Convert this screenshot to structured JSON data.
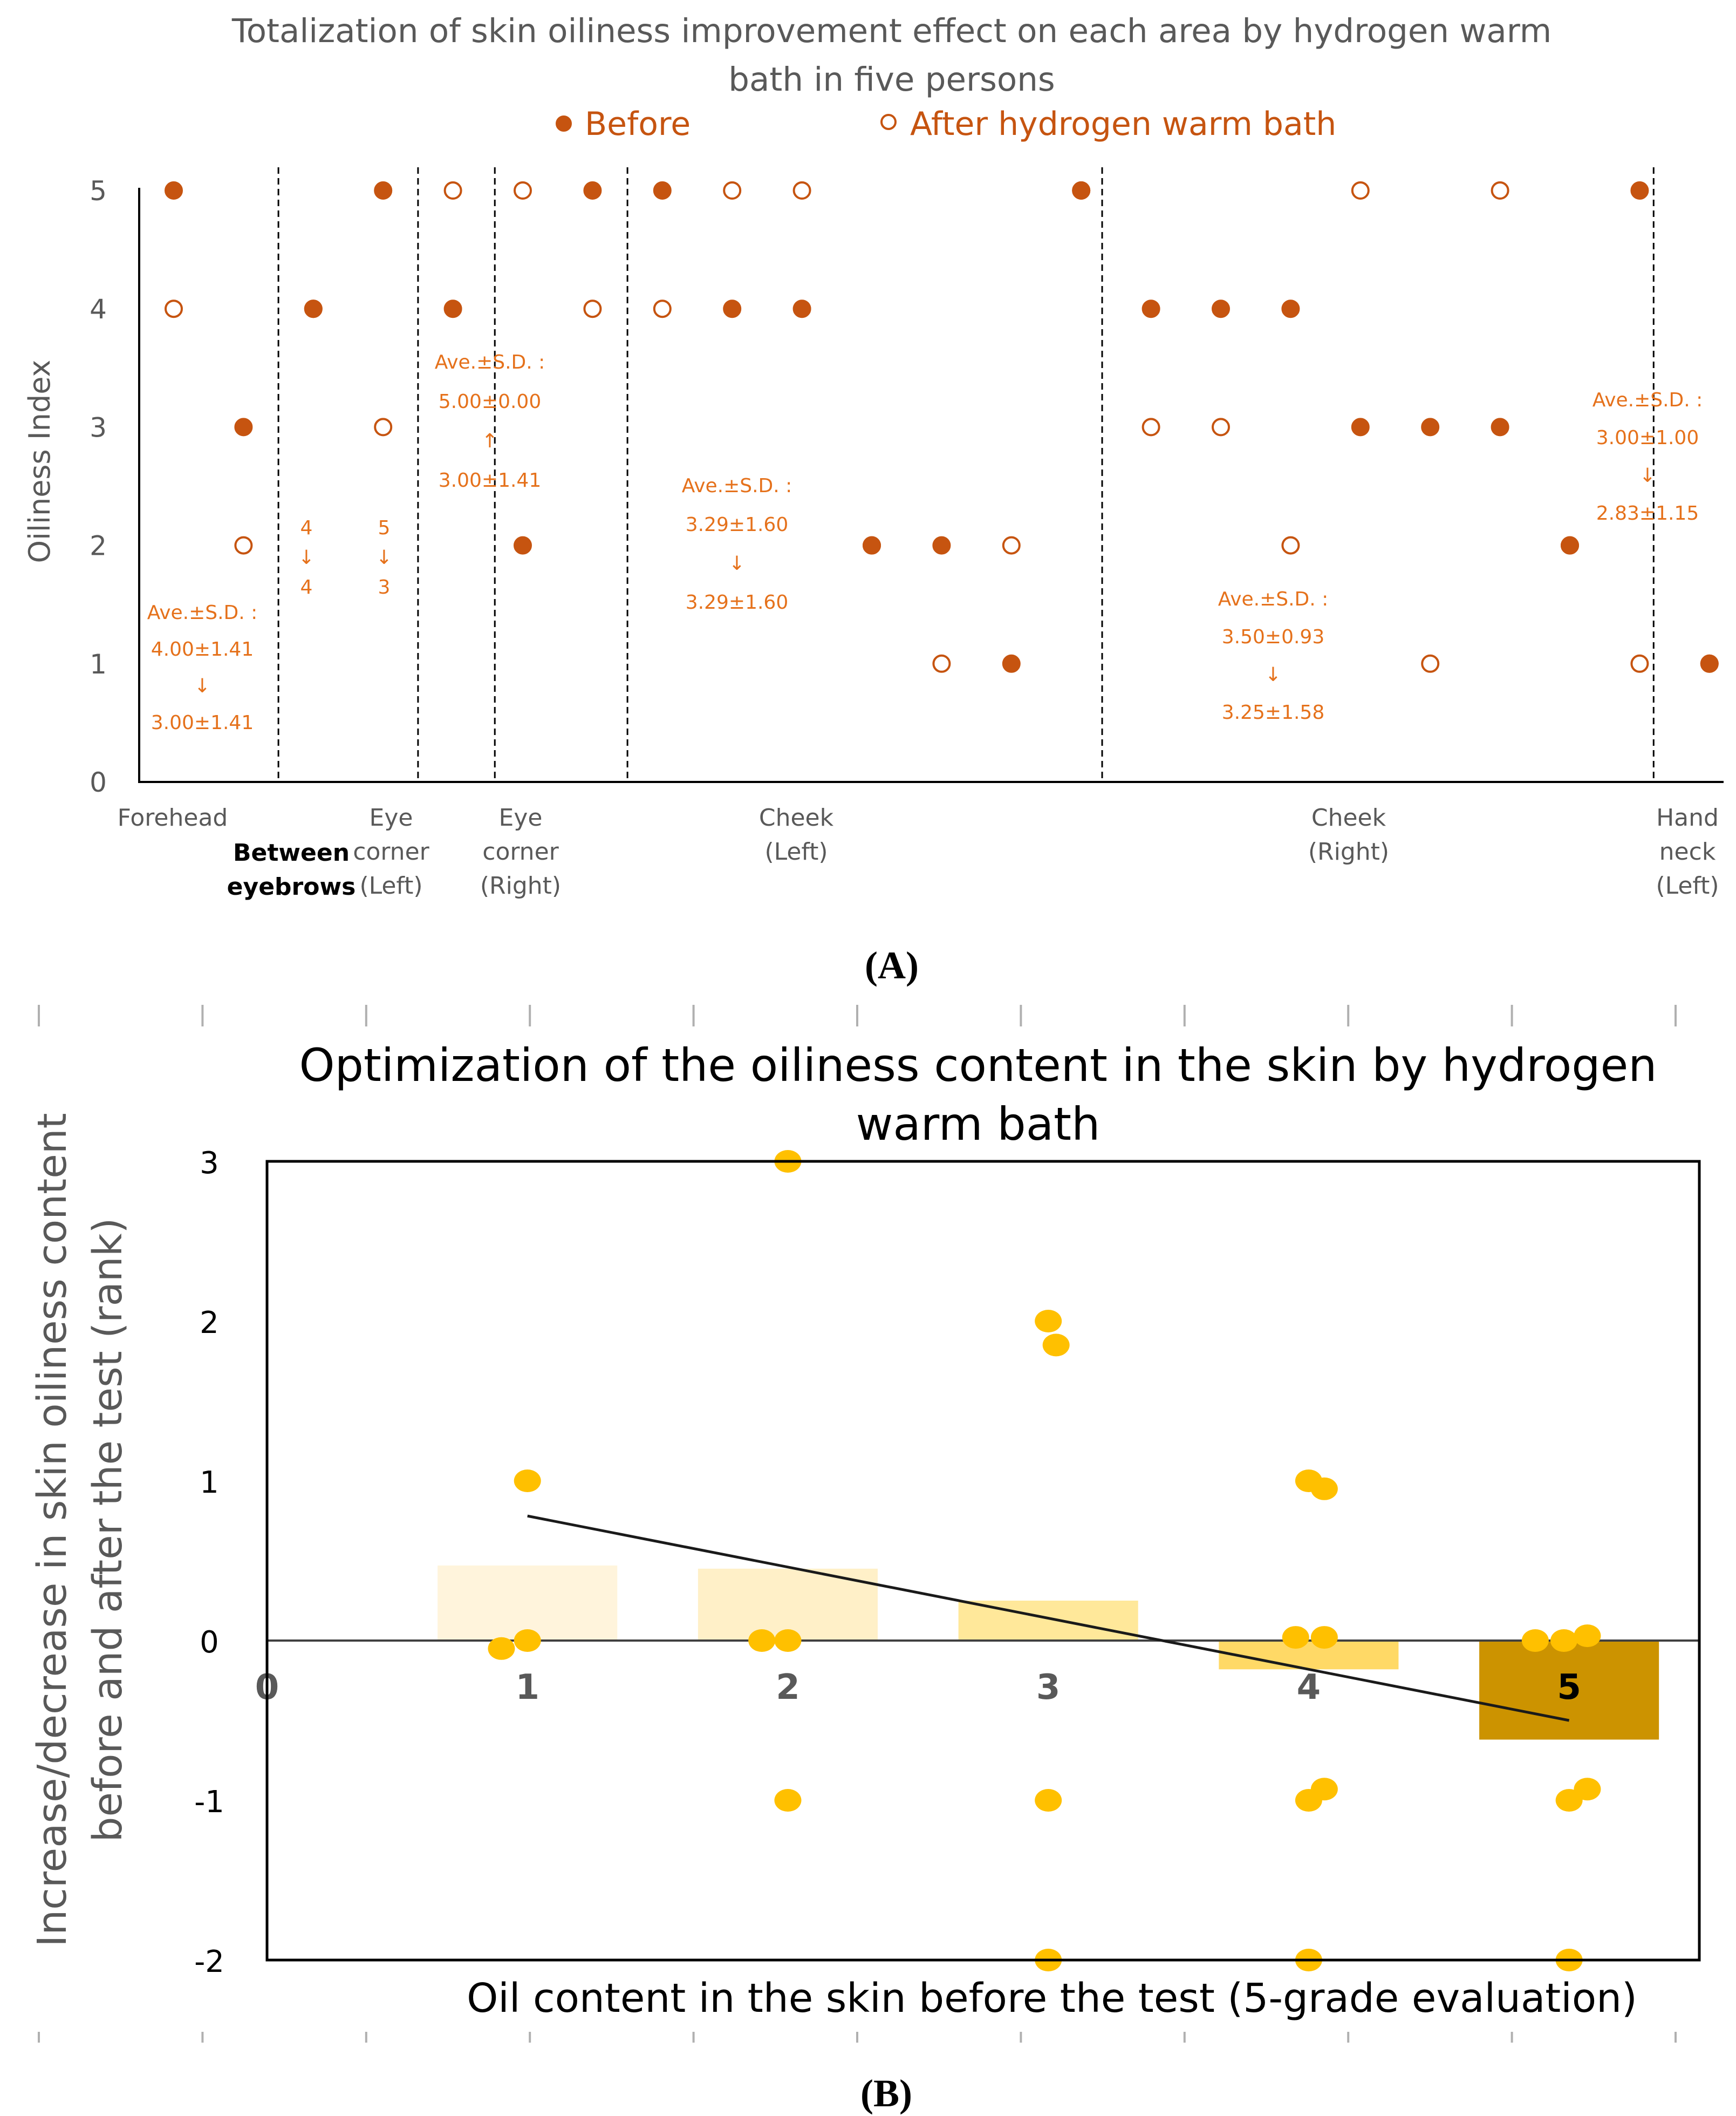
{
  "colors": {
    "marker_orange": "#c65410",
    "annotation_orange": "#e5711b",
    "axis_text": "#595959",
    "gold_point": "#ffc000",
    "bar_1": "#fff4dc",
    "bar_2": "#fff0c8",
    "bar_3": "#ffe89a",
    "bar_4": "#ffd966",
    "bar_5": "#cc9300"
  },
  "panel_labels": {
    "a": "(A)",
    "b": "(B)"
  },
  "chart_data": [
    {
      "type": "scatter",
      "title": "Totalization of skin oiliness improvement effect on each area by hydrogen warm bath in five persons",
      "title_lines": [
        "Totalization of skin oiliness improvement effect on each area by hydrogen warm",
        "bath in five persons"
      ],
      "ylabel": "Oiliness Index",
      "ylim": [
        0,
        5
      ],
      "y_ticks": [
        "0",
        "1",
        "2",
        "3",
        "4",
        "5"
      ],
      "legend_placement": "top",
      "legend": [
        {
          "name": "Before",
          "marker": "filled"
        },
        {
          "name": "After hydrogen warm bath",
          "marker": "open"
        }
      ],
      "regions": [
        {
          "lines": [
            "Forehead"
          ],
          "bold": false
        },
        {
          "lines": [
            "Between",
            "eyebrows"
          ],
          "bold": true
        },
        {
          "lines": [
            "Eye",
            "corner",
            "(Left)"
          ],
          "bold": false
        },
        {
          "lines": [
            "Eye",
            "corner",
            "(Right)"
          ],
          "bold": false
        },
        {
          "lines": [
            "Cheek",
            "(Left)"
          ],
          "bold": false
        },
        {
          "lines": [
            "Cheek",
            "(Right)"
          ],
          "bold": false
        },
        {
          "lines": [
            "Hand",
            "neck",
            "(Left)"
          ],
          "bold": false
        }
      ],
      "points": [
        {
          "slot": 1,
          "before": 5,
          "after": 4
        },
        {
          "slot": 2,
          "before": 3,
          "after": 2
        },
        {
          "slot": 3,
          "before": 4,
          "after": 4
        },
        {
          "slot": 4,
          "before": 5,
          "after": 3
        },
        {
          "slot": 5,
          "before": 4,
          "after": 5
        },
        {
          "slot": 6,
          "before": 2,
          "after": 5
        },
        {
          "slot": 7,
          "before": 5,
          "after": 4
        },
        {
          "slot": 8,
          "before": 5,
          "after": 4
        },
        {
          "slot": 9,
          "before": 4,
          "after": 5
        },
        {
          "slot": 10,
          "before": 4,
          "after": 5
        },
        {
          "slot": 11,
          "before": 2,
          "after": 2
        },
        {
          "slot": 12,
          "before": 2,
          "after": 1
        },
        {
          "slot": 13,
          "before": 1,
          "after": 2
        },
        {
          "slot": 14,
          "before": 5,
          "after": 5
        },
        {
          "slot": 15,
          "before": 4,
          "after": 3
        },
        {
          "slot": 16,
          "before": 4,
          "after": 3
        },
        {
          "slot": 17,
          "before": 4,
          "after": 2
        },
        {
          "slot": 18,
          "before": 3,
          "after": 5
        },
        {
          "slot": 19,
          "before": 3,
          "after": 1
        },
        {
          "slot": 20,
          "before": 3,
          "after": 5
        },
        {
          "slot": 21,
          "before": 2,
          "after": 2
        },
        {
          "slot": 22,
          "before": 5,
          "after": 1
        },
        {
          "slot": 23,
          "before": 1,
          "after": 1
        }
      ],
      "annotations": [
        {
          "lines": [
            "Ave.±S.D. :",
            "4.00±1.41",
            "↓",
            "3.00±1.41"
          ]
        },
        {
          "lines": [
            "4",
            "↓",
            "4"
          ]
        },
        {
          "lines": [
            "5",
            "↓",
            "3"
          ]
        },
        {
          "lines": [
            "Ave.±S.D. :",
            "5.00±0.00",
            "↑",
            "3.00±1.41"
          ]
        },
        {
          "lines": [
            "Ave.±S.D. :",
            "3.29±1.60",
            "↓",
            "3.29±1.60"
          ]
        },
        {
          "lines": [
            "Ave.±S.D. :",
            "3.50±0.93",
            "↓",
            "3.25±1.58"
          ]
        },
        {
          "lines": [
            "Ave.±S.D. :",
            "3.00±1.00",
            "↓",
            "2.83±1.15"
          ]
        }
      ]
    },
    {
      "type": "bar",
      "title": "Optimization of the oiliness content in the skin by  hydrogen warm bath",
      "title_lines": [
        "Optimization of the oiliness content in the skin by  hydrogen",
        "warm bath"
      ],
      "xlabel": "Oil content in the skin before the test (5-grade evaluation)",
      "ylabel": "Increase/decrease in skin oiliness content before and after the test (rank)",
      "ylabel_lines": [
        "Increase/decrease in skin oiliness content",
        "before and after the test (rank)"
      ],
      "xlim": [
        0,
        5.5
      ],
      "ylim": [
        -2,
        3
      ],
      "x_ticks": [
        "0",
        "1",
        "2",
        "3",
        "4",
        "5"
      ],
      "y_ticks": [
        "-2",
        "-1",
        "0",
        "1",
        "2",
        "3"
      ],
      "grid": false,
      "categories": [
        "1",
        "2",
        "3",
        "4",
        "5"
      ],
      "values": [
        0.47,
        0.45,
        0.25,
        -0.18,
        -0.62
      ],
      "scatter_points": [
        {
          "x": 1,
          "y": 1
        },
        {
          "x": 1,
          "y": 0
        },
        {
          "x": 0.9,
          "y": -0.05
        },
        {
          "x": 2,
          "y": 3
        },
        {
          "x": 1.9,
          "y": 0
        },
        {
          "x": 2,
          "y": 0
        },
        {
          "x": 2,
          "y": -1
        },
        {
          "x": 3,
          "y": 2
        },
        {
          "x": 3.03,
          "y": 1.85
        },
        {
          "x": 3,
          "y": -1
        },
        {
          "x": 3,
          "y": -2
        },
        {
          "x": 4,
          "y": 1
        },
        {
          "x": 4.06,
          "y": 0.95
        },
        {
          "x": 3.95,
          "y": 0.02
        },
        {
          "x": 4.06,
          "y": 0.02
        },
        {
          "x": 4,
          "y": -1
        },
        {
          "x": 4.06,
          "y": -0.93
        },
        {
          "x": 4,
          "y": -2
        },
        {
          "x": 4.87,
          "y": 0
        },
        {
          "x": 4.98,
          "y": 0
        },
        {
          "x": 5.07,
          "y": 0.03
        },
        {
          "x": 5,
          "y": -1
        },
        {
          "x": 5.07,
          "y": -0.93
        },
        {
          "x": 5,
          "y": -2
        }
      ],
      "trendline": {
        "x": [
          1,
          5
        ],
        "y": [
          0.78,
          -0.5
        ]
      }
    }
  ]
}
